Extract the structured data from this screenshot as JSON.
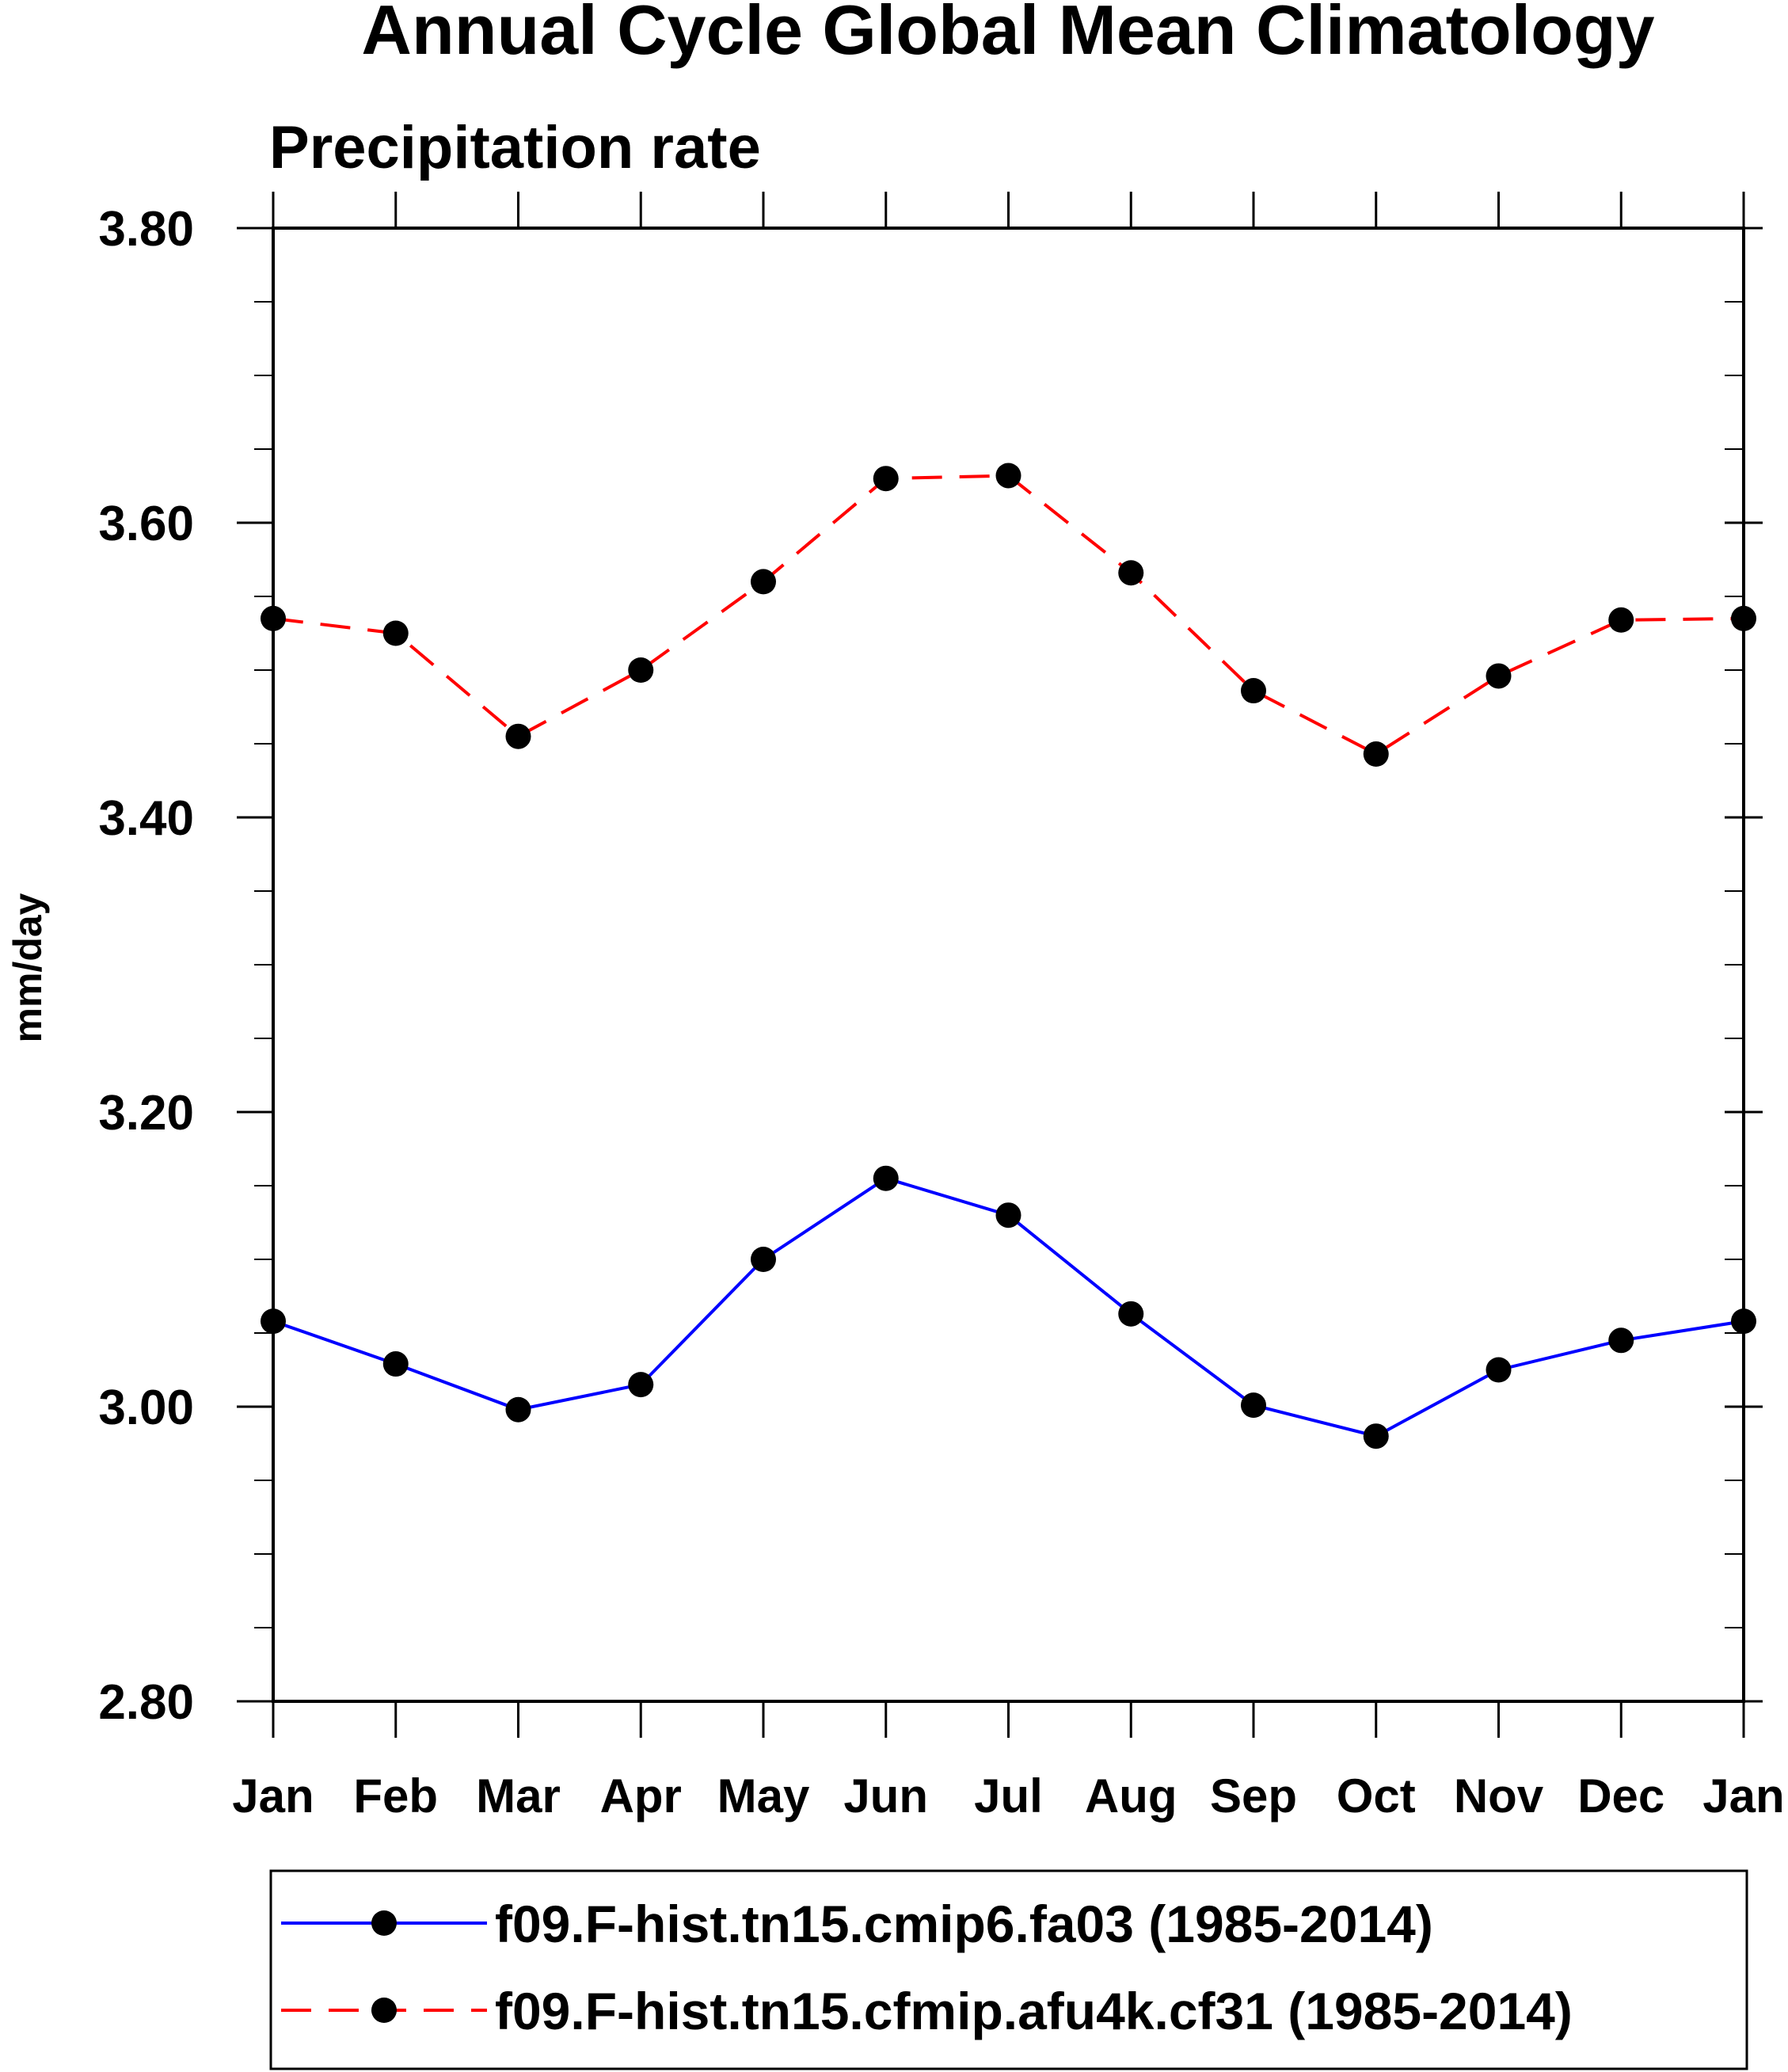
{
  "chart_data": {
    "type": "line",
    "title": "Annual Cycle Global Mean Climatology",
    "subtitle": "Precipitation rate",
    "xlabel": "",
    "ylabel": "mm/day",
    "categories": [
      "Jan",
      "Feb",
      "Mar",
      "Apr",
      "May",
      "Jun",
      "Jul",
      "Aug",
      "Sep",
      "Oct",
      "Nov",
      "Dec",
      "Jan"
    ],
    "ylim": [
      2.8,
      3.8
    ],
    "yticks": [
      "2.80",
      "3.00",
      "3.20",
      "3.40",
      "3.60",
      "3.80"
    ],
    "grid": false,
    "legend_position": "bottom",
    "series": [
      {
        "name": "f09.F-hist.tn15.cmip6.fa03 (1985-2014)",
        "color": "#0000ff",
        "line_style": "solid",
        "marker": "filled-circle",
        "marker_color": "#000000",
        "values": [
          3.058,
          3.029,
          2.998,
          3.015,
          3.1,
          3.155,
          3.13,
          3.063,
          3.001,
          2.98,
          3.025,
          3.045,
          3.058
        ]
      },
      {
        "name": "f09.F-hist.tn15.cfmip.afu4k.cf31 (1985-2014)",
        "color": "#ff0000",
        "line_style": "dashed",
        "marker": "filled-circle",
        "marker_color": "#000000",
        "values": [
          3.535,
          3.525,
          3.455,
          3.5,
          3.56,
          3.63,
          3.632,
          3.566,
          3.486,
          3.443,
          3.496,
          3.534,
          3.535
        ]
      }
    ]
  }
}
